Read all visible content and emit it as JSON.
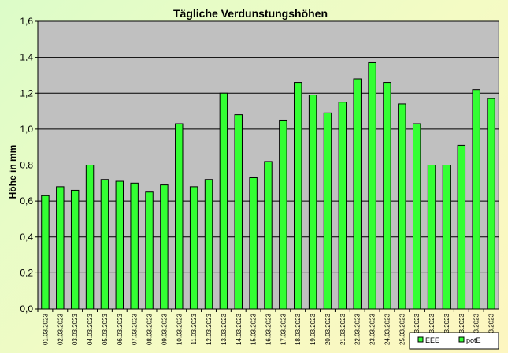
{
  "chart_data": {
    "type": "bar",
    "title": "Tägliche Verdunstungshöhen",
    "ylabel": "Höhe in mm",
    "xlabel": "",
    "ylim": [
      0,
      1.6
    ],
    "yticks": [
      "0,0",
      "0,2",
      "0,4",
      "0,6",
      "0,8",
      "1,0",
      "1,2",
      "1,4",
      "1,6"
    ],
    "grid": true,
    "legend_position": "bottom-right",
    "plot_background": "#c0c0c0",
    "bar_color": "#33ff33",
    "categories": [
      "01.03.2023",
      "02.03.2023",
      "03.03.2023",
      "04.03.2023",
      "05.03.2023",
      "06.03.2023",
      "07.03.2023",
      "08.03.2023",
      "09.03.2023",
      "10.03.2023",
      "11.03.2023",
      "12.03.2023",
      "13.03.2023",
      "14.03.2023",
      "15.03.2023",
      "16.03.2023",
      "17.03.2023",
      "18.03.2023",
      "19.03.2023",
      "20.03.2023",
      "21.03.2023",
      "22.03.2023",
      "23.03.2023",
      "24.03.2023",
      "25.03.2023",
      "26.03.2023",
      "27.03.2023",
      "28.03.2023",
      "29.03.2023",
      "30.03.2023",
      "31.03.2023"
    ],
    "series": [
      {
        "name": "EEE",
        "values": [
          0.63,
          0.68,
          0.66,
          0.8,
          0.72,
          0.71,
          0.7,
          0.65,
          0.69,
          1.03,
          0.68,
          0.72,
          1.2,
          1.08,
          0.73,
          0.82,
          1.05,
          1.26,
          1.19,
          1.09,
          1.15,
          1.28,
          1.37,
          1.26,
          1.14,
          1.03,
          0.8,
          0.8,
          0.91,
          1.22,
          1.17
        ]
      }
    ],
    "legend": [
      {
        "label": "EEE",
        "color": "#33ff33"
      },
      {
        "label": "potE",
        "color": "#33ff33"
      }
    ]
  }
}
